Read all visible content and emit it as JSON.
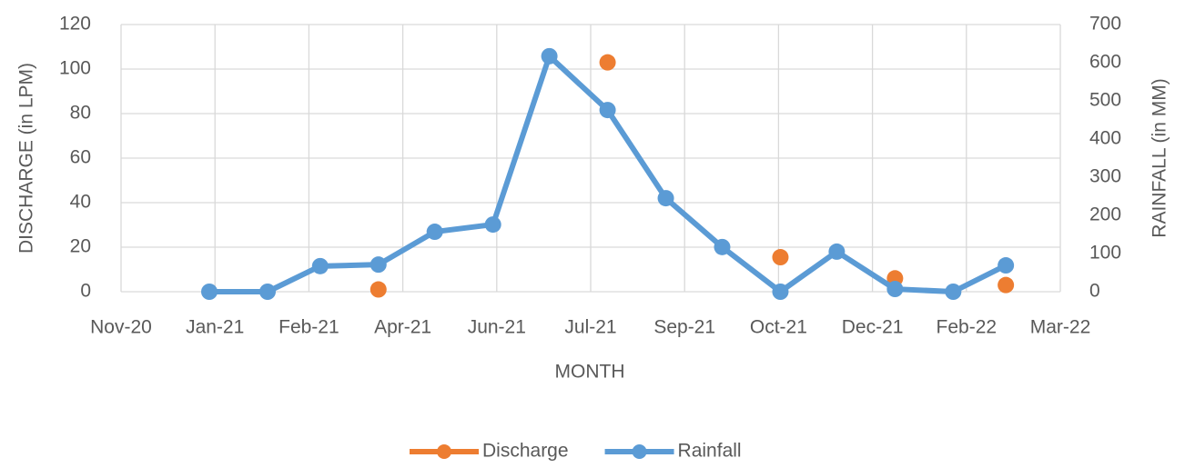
{
  "chart_data": {
    "type": "line",
    "x_label": "MONTH",
    "y_label": "DISCHARGE (in LPM)",
    "y2_label": "RAINFALL (in MM)",
    "x": [
      44197,
      44228,
      44256,
      44287,
      44317,
      44348,
      44378,
      44409,
      44440,
      44470,
      44501,
      44531,
      44562,
      44593,
      44621
    ],
    "xlim": [
      44150,
      44650
    ],
    "xticks": [
      {
        "value": 44150,
        "label": "Nov-20"
      },
      {
        "value": 44200,
        "label": "Jan-21"
      },
      {
        "value": 44250,
        "label": "Feb-21"
      },
      {
        "value": 44300,
        "label": "Apr-21"
      },
      {
        "value": 44350,
        "label": "Jun-21"
      },
      {
        "value": 44400,
        "label": "Jul-21"
      },
      {
        "value": 44450,
        "label": "Sep-21"
      },
      {
        "value": 44500,
        "label": "Oct-21"
      },
      {
        "value": 44550,
        "label": "Dec-21"
      },
      {
        "value": 44600,
        "label": "Feb-22"
      },
      {
        "value": 44650,
        "label": "Mar-22"
      }
    ],
    "ylim": [
      0,
      120
    ],
    "yticks": [
      0,
      20,
      40,
      60,
      80,
      100,
      120
    ],
    "y2lim": [
      0,
      700
    ],
    "y2ticks": [
      0,
      100,
      200,
      300,
      400,
      500,
      600,
      700
    ],
    "grid": true,
    "legend": "bottom",
    "series": [
      {
        "name": "Discharge",
        "color": "#ed7d31",
        "axis": "y",
        "values": [
          null,
          null,
          null,
          1,
          null,
          null,
          null,
          103,
          null,
          null,
          15.5,
          null,
          6,
          null,
          3
        ]
      },
      {
        "name": "Rainfall",
        "color": "#5b9bd5",
        "axis": "y2",
        "values": [
          0,
          0,
          67,
          71,
          157,
          176,
          617,
          476,
          245,
          117,
          0,
          105,
          7,
          0,
          69
        ]
      }
    ]
  }
}
